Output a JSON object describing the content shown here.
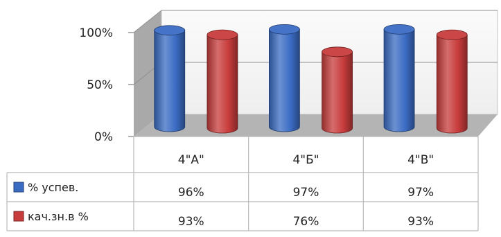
{
  "chart_data": {
    "type": "bar",
    "style": "3d-cylinder",
    "categories": [
      "4\"А\"",
      "4\"Б\"",
      "4\"В\""
    ],
    "series": [
      {
        "name": "% успев.",
        "values": [
          96,
          97,
          97
        ],
        "value_labels": [
          "96%",
          "97%",
          "97%"
        ],
        "color": "#3b6cc4"
      },
      {
        "name": "кач.зн.в %",
        "values": [
          93,
          76,
          93
        ],
        "value_labels": [
          "93%",
          "76%",
          "93%"
        ],
        "color": "#c83c3c"
      }
    ],
    "y_ticks": [
      "0%",
      "50%",
      "100%"
    ],
    "ylim": [
      0,
      100
    ],
    "grid": true,
    "legend": "data-table-left",
    "data_table": true
  }
}
